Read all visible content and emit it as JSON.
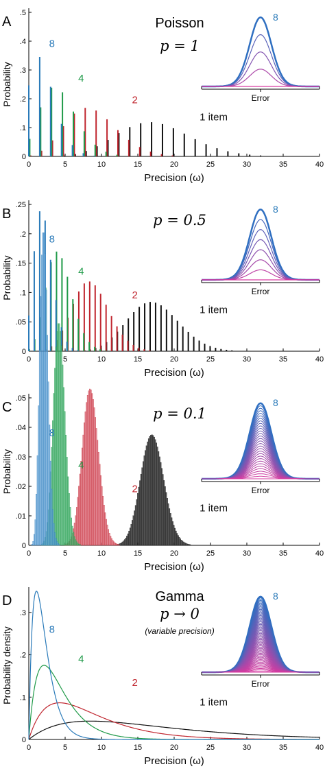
{
  "colors": {
    "n8": "#2a7ab9",
    "n4": "#1f9a48",
    "n2": "#c0262f",
    "n1": "#111111",
    "axis": "#000000",
    "inset_outer": "#2f6fc1",
    "inset_inner": "#6a2d8f",
    "inset_floor": "#d63aa0"
  },
  "shared": {
    "xlabel": "Precision (ω)",
    "inset_label": "Error",
    "xticks": [
      "0",
      "5",
      "10",
      "15",
      "20",
      "25",
      "30",
      "35",
      "40"
    ]
  },
  "panels": [
    {
      "letter": "A",
      "title_line1": "Poisson",
      "title_line2": "p = 1",
      "title_line3": "",
      "ylabel": "Probability",
      "yticks": [
        "0",
        ".1",
        ".2",
        ".3",
        ".4",
        ".5"
      ]
    },
    {
      "letter": "B",
      "title_line1": "",
      "title_line2": "p = 0.5",
      "title_line3": "",
      "ylabel": "Probability",
      "yticks": [
        "0",
        ".05",
        ".1",
        ".15",
        ".2",
        ".25"
      ]
    },
    {
      "letter": "C",
      "title_line1": "",
      "title_line2": "p = 0.1",
      "title_line3": "",
      "ylabel": "Probability",
      "yticks": [
        "0",
        ".01",
        ".02",
        ".03",
        ".04",
        ".05"
      ]
    },
    {
      "letter": "D",
      "title_line1": "Gamma",
      "title_line2": "p → 0",
      "title_line3": "(variable precision)",
      "ylabel": "Probability density",
      "yticks": [
        "0",
        ".1",
        ".2",
        ".3"
      ]
    }
  ],
  "chart_data": [
    {
      "type": "bar",
      "panel": "A",
      "xlabel": "Precision (ω)",
      "ylabel": "Probability",
      "xlim": [
        0,
        40
      ],
      "ylim": [
        0,
        0.5
      ],
      "step": 1.5,
      "series": [
        {
          "name": "8",
          "mean": 2.1
        },
        {
          "name": "4",
          "mean": 4.2
        },
        {
          "name": "2",
          "mean": 8.5
        },
        {
          "name": "1 item",
          "mean": 17
        }
      ],
      "inset": {
        "label": "Error",
        "curves": 4,
        "top_label": "8"
      }
    },
    {
      "type": "bar",
      "panel": "B",
      "xlabel": "Precision (ω)",
      "ylabel": "Probability",
      "xlim": [
        0,
        40
      ],
      "ylim": [
        0,
        0.25
      ],
      "step": 0.75,
      "series": [
        {
          "name": "8",
          "mean": 2.1
        },
        {
          "name": "4",
          "mean": 4.2
        },
        {
          "name": "2",
          "mean": 8.5
        },
        {
          "name": "1 item",
          "mean": 17
        }
      ],
      "inset": {
        "label": "Error",
        "curves": 7,
        "top_label": "8"
      }
    },
    {
      "type": "bar",
      "panel": "C",
      "xlabel": "Precision (ω)",
      "ylabel": "Probability",
      "xlim": [
        0,
        40
      ],
      "ylim": [
        0,
        0.05
      ],
      "step": 0.15,
      "series": [
        {
          "name": "8",
          "mean": 2.1
        },
        {
          "name": "4",
          "mean": 4.2
        },
        {
          "name": "2",
          "mean": 8.5
        },
        {
          "name": "1 item",
          "mean": 17
        }
      ],
      "inset": {
        "label": "Error",
        "curves": 30,
        "top_label": "8"
      }
    },
    {
      "type": "line",
      "panel": "D",
      "xlabel": "Precision (ω)",
      "ylabel": "Probability density",
      "xlim": [
        0,
        40
      ],
      "ylim": [
        0,
        0.35
      ],
      "shape": 2,
      "series": [
        {
          "name": "8",
          "mean": 2.1
        },
        {
          "name": "4",
          "mean": 4.2
        },
        {
          "name": "2",
          "mean": 8.5
        },
        {
          "name": "1 item",
          "mean": 17
        }
      ],
      "inset": {
        "label": "Error",
        "curves": 60,
        "top_label": "8"
      }
    }
  ]
}
